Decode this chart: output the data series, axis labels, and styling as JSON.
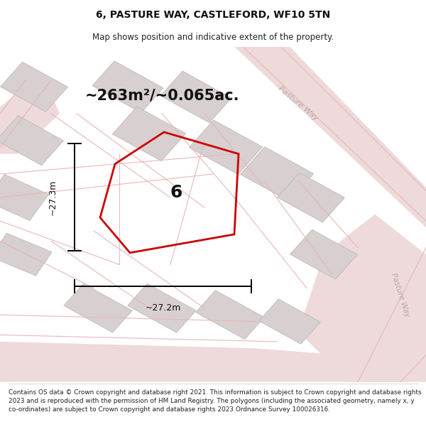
{
  "title": "6, PASTURE WAY, CASTLEFORD, WF10 5TN",
  "subtitle": "Map shows position and indicative extent of the property.",
  "area_text": "~263m²/~0.065ac.",
  "dim_h": "~27.3m",
  "dim_w": "~27.2m",
  "plot_number": "6",
  "bg_color": "#f5eeee",
  "footer_text": "Contains OS data © Crown copyright and database right 2021. This information is subject to Crown copyright and database rights 2023 and is reproduced with the permission of HM Land Registry. The polygons (including the associated geometry, namely x, y co-ordinates) are subject to Crown copyright and database rights 2023 Ordnance Survey 100026316.",
  "road_color": "#e8b4b4",
  "road_fill": "#eedada",
  "building_fill": "#d8d0d0",
  "building_edge": "#c0b8b8",
  "road_label": "Pasture Way",
  "road_label2": "Pasture Way",
  "plot_color": "#cc0000",
  "header_bg": "#ffffff",
  "map_bg": "#f0e8e8"
}
